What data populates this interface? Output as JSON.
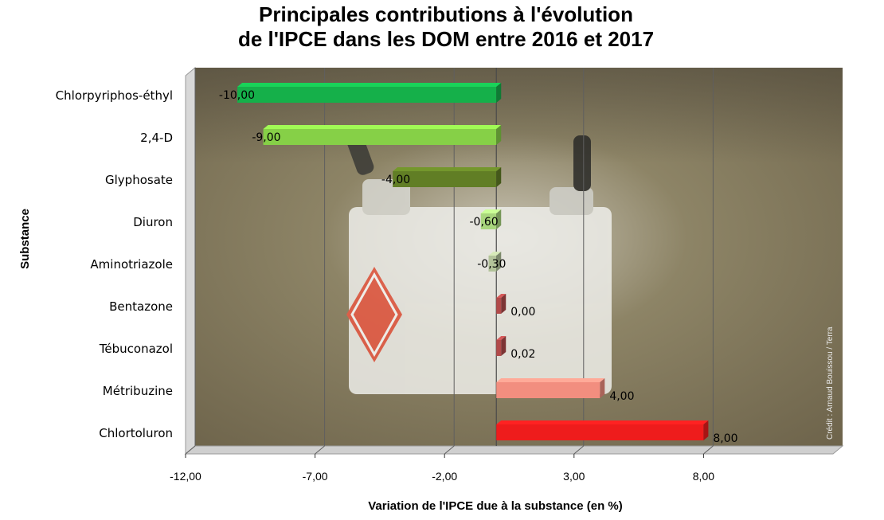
{
  "colors": {
    "chlorpyriphos": "#15b04a",
    "d24": "#86d047",
    "glyphosate": "#617e25",
    "diuron": "#a9d67d",
    "aminotriazole": "#b3c39a",
    "bentazone": "#b24a4a",
    "tebuconazol": "#b24a4a",
    "metribuzine": "#f28e7f",
    "chlortoluron": "#ee1c1c",
    "grid": "#5f5f5f",
    "background_photo": "#7b7560"
  },
  "photo_credit": "Crédit : Arnaud Bouissou / Terra",
  "chart_data": {
    "type": "bar",
    "orientation": "horizontal",
    "title_lines": [
      "Principales contributions à l'évolution",
      "de l'IPCE dans les DOM entre 2016 et 2017"
    ],
    "xlabel": "Variation de l'IPCE  due à la substance (en %)",
    "ylabel": "Substance",
    "xlim": [
      -12,
      13
    ],
    "x_ticks": [
      -12,
      -7,
      -2,
      3,
      8
    ],
    "x_tick_labels": [
      "-12,00",
      "-7,00",
      "-2,00",
      "3,00",
      "8,00"
    ],
    "grid": "vertical major gridlines",
    "categories": [
      "Chlorpyriphos-éthyl",
      "2,4-D",
      "Glyphosate",
      "Diuron",
      "Aminotriazole",
      "Bentazone",
      "Tébuconazol",
      "Métribuzine",
      "Chlortoluron"
    ],
    "values": [
      -10.0,
      -9.0,
      -4.0,
      -0.6,
      -0.3,
      0.0,
      0.02,
      4.0,
      8.0
    ],
    "value_labels": [
      "-10,00",
      "-9,00",
      "-4,00",
      "-0,60",
      "-0,30",
      "0,00",
      "0,02",
      "4,00",
      "8,00"
    ],
    "bar_color_keys": [
      "chlorpyriphos",
      "d24",
      "glyphosate",
      "diuron",
      "aminotriazole",
      "bentazone",
      "tebuconazol",
      "metribuzine",
      "chlortoluron"
    ]
  }
}
